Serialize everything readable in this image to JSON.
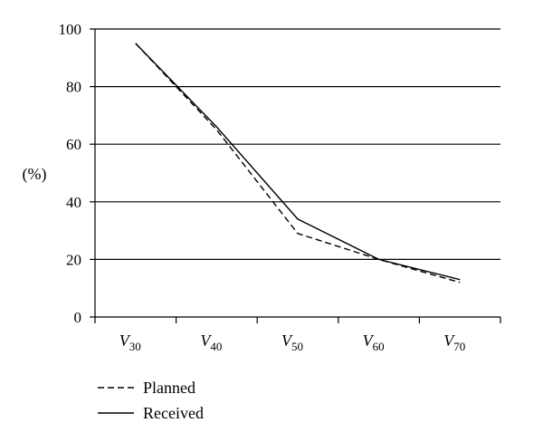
{
  "chart_data": {
    "type": "line",
    "categories": [
      {
        "base": "V",
        "sub": "30"
      },
      {
        "base": "V",
        "sub": "40"
      },
      {
        "base": "V",
        "sub": "50"
      },
      {
        "base": "V",
        "sub": "60"
      },
      {
        "base": "V",
        "sub": "70"
      }
    ],
    "series": [
      {
        "name": "Planned",
        "style": "dashed",
        "values": [
          95,
          65,
          29,
          20,
          12
        ]
      },
      {
        "name": "Received",
        "style": "solid",
        "values": [
          95,
          66,
          34,
          20,
          13
        ]
      }
    ],
    "title": "",
    "xlabel": "",
    "ylabel": "(%)",
    "ylim": [
      0,
      100
    ],
    "yticks": [
      0,
      20,
      40,
      60,
      80,
      100
    ],
    "grid": "horizontal",
    "legend_position": "bottom-left",
    "colors": {
      "line": "#000000",
      "grid": "#000000"
    }
  }
}
